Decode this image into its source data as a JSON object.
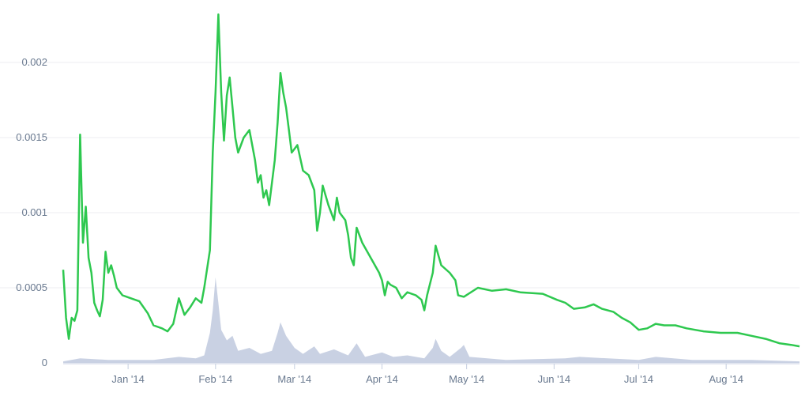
{
  "chart_data": {
    "type": "line",
    "title": "",
    "xlabel": "",
    "ylabel": "",
    "x_range": [
      "2013-12-09",
      "2014-08-27"
    ],
    "ylim": [
      0,
      0.0023
    ],
    "grid": true,
    "legend": "none",
    "y_ticks": [
      {
        "value": 0,
        "label": "0"
      },
      {
        "value": 0.0005,
        "label": "0.0005"
      },
      {
        "value": 0.001,
        "label": "0.001"
      },
      {
        "value": 0.0015,
        "label": "0.0015"
      },
      {
        "value": 0.002,
        "label": "0.002"
      }
    ],
    "x_ticks": [
      {
        "date": "2014-01-01",
        "label": "Jan '14"
      },
      {
        "date": "2014-02-01",
        "label": "Feb '14"
      },
      {
        "date": "2014-03-01",
        "label": "Mar '14"
      },
      {
        "date": "2014-04-01",
        "label": "Apr '14"
      },
      {
        "date": "2014-05-01",
        "label": "May '14"
      },
      {
        "date": "2014-06-01",
        "label": "Jun '14"
      },
      {
        "date": "2014-07-01",
        "label": "Jul '14"
      },
      {
        "date": "2014-08-01",
        "label": "Aug '14"
      }
    ],
    "colors": {
      "price": "#2ec84f",
      "volume": "#c9d1e3",
      "grid": "#ececf2",
      "axis": "#c5cee0"
    },
    "volume_max": 0.0023,
    "series": [
      {
        "role": "price",
        "points": [
          [
            "2013-12-09",
            0.00062
          ],
          [
            "2013-12-10",
            0.0003
          ],
          [
            "2013-12-11",
            0.00016
          ],
          [
            "2013-12-12",
            0.0003
          ],
          [
            "2013-12-13",
            0.00028
          ],
          [
            "2013-12-14",
            0.00035
          ],
          [
            "2013-12-15",
            0.00152
          ],
          [
            "2013-12-16",
            0.0008
          ],
          [
            "2013-12-17",
            0.00104
          ],
          [
            "2013-12-18",
            0.0007
          ],
          [
            "2013-12-19",
            0.0006
          ],
          [
            "2013-12-20",
            0.0004
          ],
          [
            "2013-12-21",
            0.00035
          ],
          [
            "2013-12-22",
            0.00031
          ],
          [
            "2013-12-23",
            0.00042
          ],
          [
            "2013-12-24",
            0.00074
          ],
          [
            "2013-12-25",
            0.0006
          ],
          [
            "2013-12-26",
            0.00065
          ],
          [
            "2013-12-27",
            0.00058
          ],
          [
            "2013-12-28",
            0.0005
          ],
          [
            "2013-12-30",
            0.00045
          ],
          [
            "2014-01-02",
            0.00043
          ],
          [
            "2014-01-05",
            0.00041
          ],
          [
            "2014-01-08",
            0.00033
          ],
          [
            "2014-01-10",
            0.00025
          ],
          [
            "2014-01-13",
            0.00023
          ],
          [
            "2014-01-15",
            0.00021
          ],
          [
            "2014-01-17",
            0.00026
          ],
          [
            "2014-01-19",
            0.00043
          ],
          [
            "2014-01-21",
            0.00032
          ],
          [
            "2014-01-23",
            0.00037
          ],
          [
            "2014-01-25",
            0.00043
          ],
          [
            "2014-01-27",
            0.0004
          ],
          [
            "2014-01-28",
            0.0005
          ],
          [
            "2014-01-30",
            0.00075
          ],
          [
            "2014-01-31",
            0.0014
          ],
          [
            "2014-02-01",
            0.0018
          ],
          [
            "2014-02-02",
            0.00232
          ],
          [
            "2014-02-03",
            0.0018
          ],
          [
            "2014-02-04",
            0.00148
          ],
          [
            "2014-02-05",
            0.00178
          ],
          [
            "2014-02-06",
            0.0019
          ],
          [
            "2014-02-07",
            0.0017
          ],
          [
            "2014-02-08",
            0.0015
          ],
          [
            "2014-02-09",
            0.0014
          ],
          [
            "2014-02-11",
            0.0015
          ],
          [
            "2014-02-13",
            0.00155
          ],
          [
            "2014-02-15",
            0.00135
          ],
          [
            "2014-02-16",
            0.0012
          ],
          [
            "2014-02-17",
            0.00125
          ],
          [
            "2014-02-18",
            0.0011
          ],
          [
            "2014-02-19",
            0.00115
          ],
          [
            "2014-02-20",
            0.00105
          ],
          [
            "2014-02-22",
            0.00135
          ],
          [
            "2014-02-23",
            0.0016
          ],
          [
            "2014-02-24",
            0.00193
          ],
          [
            "2014-02-25",
            0.0018
          ],
          [
            "2014-02-26",
            0.0017
          ],
          [
            "2014-02-27",
            0.00155
          ],
          [
            "2014-02-28",
            0.0014
          ],
          [
            "2014-03-02",
            0.00145
          ],
          [
            "2014-03-04",
            0.00128
          ],
          [
            "2014-03-06",
            0.00125
          ],
          [
            "2014-03-08",
            0.00115
          ],
          [
            "2014-03-09",
            0.00088
          ],
          [
            "2014-03-10",
            0.001
          ],
          [
            "2014-03-11",
            0.00118
          ],
          [
            "2014-03-13",
            0.00105
          ],
          [
            "2014-03-15",
            0.00095
          ],
          [
            "2014-03-16",
            0.0011
          ],
          [
            "2014-03-17",
            0.001
          ],
          [
            "2014-03-19",
            0.00095
          ],
          [
            "2014-03-20",
            0.00085
          ],
          [
            "2014-03-21",
            0.0007
          ],
          [
            "2014-03-22",
            0.00065
          ],
          [
            "2014-03-23",
            0.0009
          ],
          [
            "2014-03-25",
            0.0008
          ],
          [
            "2014-03-28",
            0.0007
          ],
          [
            "2014-03-31",
            0.0006
          ],
          [
            "2014-04-01",
            0.00055
          ],
          [
            "2014-04-02",
            0.00045
          ],
          [
            "2014-04-03",
            0.00054
          ],
          [
            "2014-04-04",
            0.00052
          ],
          [
            "2014-04-06",
            0.0005
          ],
          [
            "2014-04-08",
            0.00043
          ],
          [
            "2014-04-10",
            0.00047
          ],
          [
            "2014-04-13",
            0.00045
          ],
          [
            "2014-04-15",
            0.00042
          ],
          [
            "2014-04-16",
            0.00035
          ],
          [
            "2014-04-17",
            0.00045
          ],
          [
            "2014-04-19",
            0.0006
          ],
          [
            "2014-04-20",
            0.00078
          ],
          [
            "2014-04-22",
            0.00065
          ],
          [
            "2014-04-25",
            0.0006
          ],
          [
            "2014-04-27",
            0.00055
          ],
          [
            "2014-04-28",
            0.00045
          ],
          [
            "2014-04-30",
            0.00044
          ],
          [
            "2014-05-05",
            0.0005
          ],
          [
            "2014-05-10",
            0.00048
          ],
          [
            "2014-05-15",
            0.00049
          ],
          [
            "2014-05-20",
            0.00047
          ],
          [
            "2014-05-28",
            0.00046
          ],
          [
            "2014-06-02",
            0.00042
          ],
          [
            "2014-06-05",
            0.0004
          ],
          [
            "2014-06-08",
            0.00036
          ],
          [
            "2014-06-12",
            0.00037
          ],
          [
            "2014-06-15",
            0.00039
          ],
          [
            "2014-06-18",
            0.00036
          ],
          [
            "2014-06-22",
            0.00034
          ],
          [
            "2014-06-25",
            0.0003
          ],
          [
            "2014-06-28",
            0.00027
          ],
          [
            "2014-07-01",
            0.00022
          ],
          [
            "2014-07-04",
            0.00023
          ],
          [
            "2014-07-07",
            0.00026
          ],
          [
            "2014-07-10",
            0.00025
          ],
          [
            "2014-07-14",
            0.00025
          ],
          [
            "2014-07-18",
            0.00023
          ],
          [
            "2014-07-24",
            0.00021
          ],
          [
            "2014-07-30",
            0.0002
          ],
          [
            "2014-08-05",
            0.0002
          ],
          [
            "2014-08-10",
            0.00018
          ],
          [
            "2014-08-15",
            0.00016
          ],
          [
            "2014-08-20",
            0.00013
          ],
          [
            "2014-08-24",
            0.00012
          ],
          [
            "2014-08-27",
            0.00011
          ]
        ]
      },
      {
        "role": "volume",
        "points": [
          [
            "2013-12-09",
            1e-05
          ],
          [
            "2013-12-15",
            3e-05
          ],
          [
            "2013-12-25",
            2e-05
          ],
          [
            "2014-01-10",
            2e-05
          ],
          [
            "2014-01-19",
            4e-05
          ],
          [
            "2014-01-25",
            3e-05
          ],
          [
            "2014-01-28",
            5e-05
          ],
          [
            "2014-01-30",
            0.0002
          ],
          [
            "2014-01-31",
            0.00035
          ],
          [
            "2014-02-01",
            0.00057
          ],
          [
            "2014-02-02",
            0.0004
          ],
          [
            "2014-02-03",
            0.00022
          ],
          [
            "2014-02-05",
            0.00015
          ],
          [
            "2014-02-07",
            0.00018
          ],
          [
            "2014-02-09",
            8e-05
          ],
          [
            "2014-02-13",
            0.0001
          ],
          [
            "2014-02-17",
            6e-05
          ],
          [
            "2014-02-21",
            8e-05
          ],
          [
            "2014-02-23",
            0.0002
          ],
          [
            "2014-02-24",
            0.00027
          ],
          [
            "2014-02-26",
            0.00018
          ],
          [
            "2014-03-01",
            0.0001
          ],
          [
            "2014-03-04",
            6e-05
          ],
          [
            "2014-03-08",
            0.00011
          ],
          [
            "2014-03-10",
            6e-05
          ],
          [
            "2014-03-15",
            9e-05
          ],
          [
            "2014-03-20",
            5e-05
          ],
          [
            "2014-03-23",
            0.00013
          ],
          [
            "2014-03-26",
            4e-05
          ],
          [
            "2014-04-01",
            7e-05
          ],
          [
            "2014-04-05",
            4e-05
          ],
          [
            "2014-04-10",
            5e-05
          ],
          [
            "2014-04-16",
            3e-05
          ],
          [
            "2014-04-19",
            0.0001
          ],
          [
            "2014-04-20",
            0.00016
          ],
          [
            "2014-04-22",
            8e-05
          ],
          [
            "2014-04-25",
            4e-05
          ],
          [
            "2014-04-29",
            0.0001
          ],
          [
            "2014-04-30",
            0.00012
          ],
          [
            "2014-05-02",
            4e-05
          ],
          [
            "2014-05-15",
            2e-05
          ],
          [
            "2014-06-05",
            3e-05
          ],
          [
            "2014-06-10",
            4e-05
          ],
          [
            "2014-06-20",
            3e-05
          ],
          [
            "2014-07-01",
            2e-05
          ],
          [
            "2014-07-07",
            4e-05
          ],
          [
            "2014-07-20",
            2e-05
          ],
          [
            "2014-08-10",
            2e-05
          ],
          [
            "2014-08-27",
            1e-05
          ]
        ]
      }
    ]
  }
}
